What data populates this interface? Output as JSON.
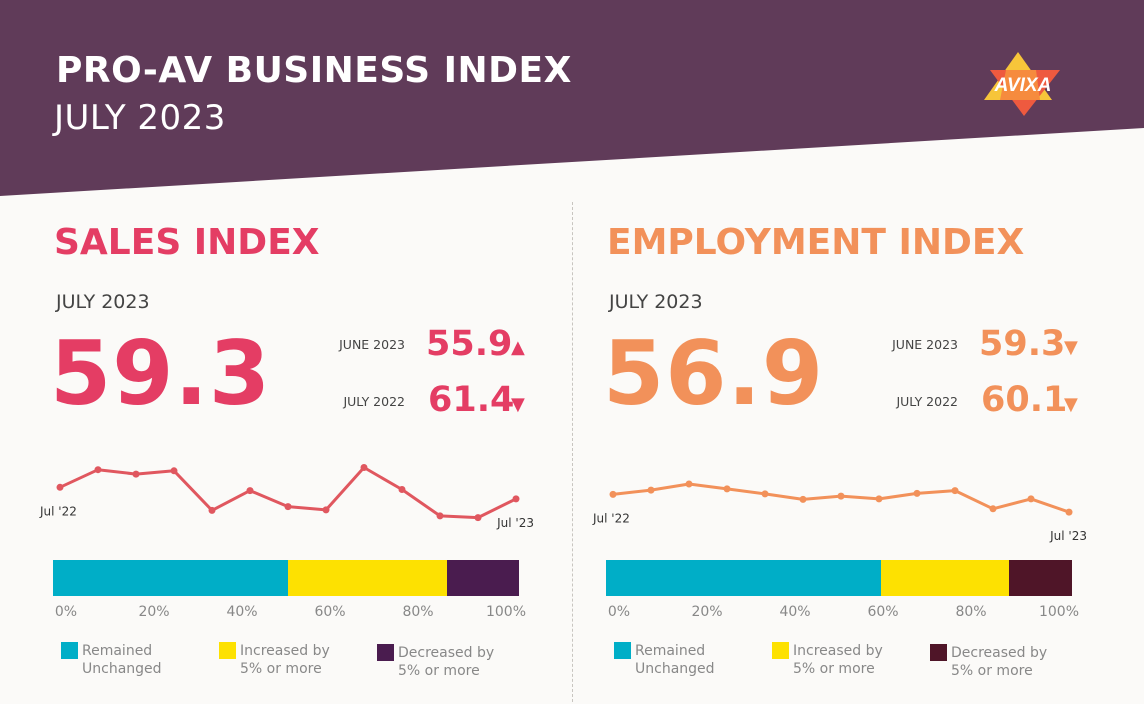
{
  "header": {
    "title": "PRO-AV BUSINESS INDEX",
    "subtitle": "JULY 2023",
    "logo_text": "AVIXA",
    "banner_color": "#603b59"
  },
  "panels": [
    {
      "title": "SALES INDEX",
      "period": "JULY 2023",
      "value": "59.3",
      "accent": "#e43d64",
      "comparisons": [
        {
          "label": "JUNE 2023",
          "value": "55.9",
          "arrow": "▲",
          "arrow_icon": "arrow-up-icon"
        },
        {
          "label": "JULY 2022",
          "value": "61.4",
          "arrow": "▼",
          "arrow_icon": "arrow-down-icon"
        }
      ]
    },
    {
      "title": "EMPLOYMENT INDEX",
      "period": "JULY 2023",
      "value": "56.9",
      "accent": "#f2915a",
      "comparisons": [
        {
          "label": "JUNE 2023",
          "value": "59.3",
          "arrow": "▼",
          "arrow_icon": "arrow-down-icon"
        },
        {
          "label": "JULY 2022",
          "value": "60.1",
          "arrow": "▼",
          "arrow_icon": "arrow-down-icon"
        }
      ]
    }
  ],
  "chart_data": [
    {
      "type": "line",
      "panel": 0,
      "x": [
        "Jul '22",
        "Aug '22",
        "Sep '22",
        "Oct '22",
        "Nov '22",
        "Dec '22",
        "Jan '23",
        "Feb '23",
        "Mar '23",
        "Apr '23",
        "May '23",
        "Jun '23",
        "Jul '23"
      ],
      "x_tick_labels": [
        "Jul '22",
        "Jul '23"
      ],
      "values": [
        61.4,
        64.6,
        63.8,
        64.4,
        57.2,
        60.8,
        57.9,
        57.3,
        65.0,
        61.0,
        56.2,
        55.9,
        59.3
      ],
      "ylim": [
        50,
        70
      ],
      "color": "#e0575f",
      "grid": false,
      "axes": false
    },
    {
      "type": "line",
      "panel": 1,
      "x": [
        "Jul '22",
        "Aug '22",
        "Sep '22",
        "Oct '22",
        "Nov '22",
        "Dec '22",
        "Jan '23",
        "Feb '23",
        "Mar '23",
        "Apr '23",
        "May '23",
        "Jun '23",
        "Jul '23"
      ],
      "x_tick_labels": [
        "Jul '22",
        "Jul '23"
      ],
      "values": [
        60.1,
        60.9,
        62.0,
        61.1,
        60.2,
        59.2,
        59.8,
        59.3,
        60.3,
        60.8,
        57.5,
        59.3,
        56.9
      ],
      "ylim": [
        50,
        70
      ],
      "color": "#f2915a",
      "grid": false,
      "axes": false
    },
    {
      "type": "bar",
      "orientation": "horizontal",
      "stacked": true,
      "panel": 0,
      "x_ticks": [
        "0%",
        "20%",
        "40%",
        "60%",
        "80%",
        "100%"
      ],
      "xlim": [
        0,
        100
      ],
      "series": [
        {
          "name": "Remained Unchanged",
          "values": [
            50.5
          ],
          "color": "#00aec7"
        },
        {
          "name": "Increased by 5% or more",
          "values": [
            34
          ],
          "color": "#fde101"
        },
        {
          "name": "Decreased by 5% or more",
          "values": [
            15.5
          ],
          "color": "#4a1c4f"
        }
      ]
    },
    {
      "type": "bar",
      "orientation": "horizontal",
      "stacked": true,
      "panel": 1,
      "x_ticks": [
        "0%",
        "20%",
        "40%",
        "60%",
        "80%",
        "100%"
      ],
      "xlim": [
        0,
        100
      ],
      "series": [
        {
          "name": "Remained Unchanged",
          "values": [
            59
          ],
          "color": "#00aec7"
        },
        {
          "name": "Increased by 5% or more",
          "values": [
            27.5
          ],
          "color": "#fde101"
        },
        {
          "name": "Decreased by 5% or more",
          "values": [
            13.5
          ],
          "color": "#4f1528"
        }
      ]
    }
  ],
  "legend_lines": [
    [
      "Remained",
      "Unchanged"
    ],
    [
      "Increased by",
      "5% or more"
    ],
    [
      "Decreased by",
      "5% or more"
    ]
  ]
}
